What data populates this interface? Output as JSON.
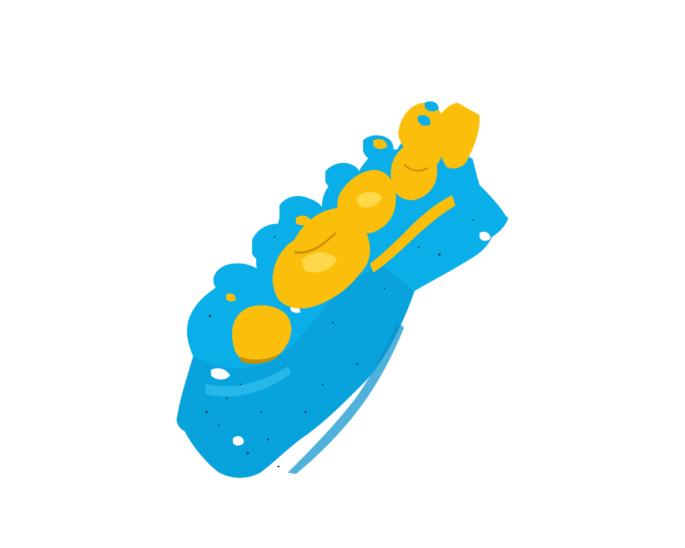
{
  "viewer": {
    "background": "#ffffff",
    "colors": {
      "scan_surface": "#0aaee8",
      "scan_shade": "#0586c0",
      "scan_highlight": "#3cc6f4",
      "overlay_teeth": "#fbbf0b",
      "overlay_shade": "#c98e00",
      "overlay_highlight": "#ffd84a",
      "scan_holes": "#0a3350"
    },
    "layers": [
      {
        "name": "scan-surface",
        "color_key": "scan_surface"
      },
      {
        "name": "overlay-teeth",
        "color_key": "overlay_teeth"
      }
    ]
  }
}
